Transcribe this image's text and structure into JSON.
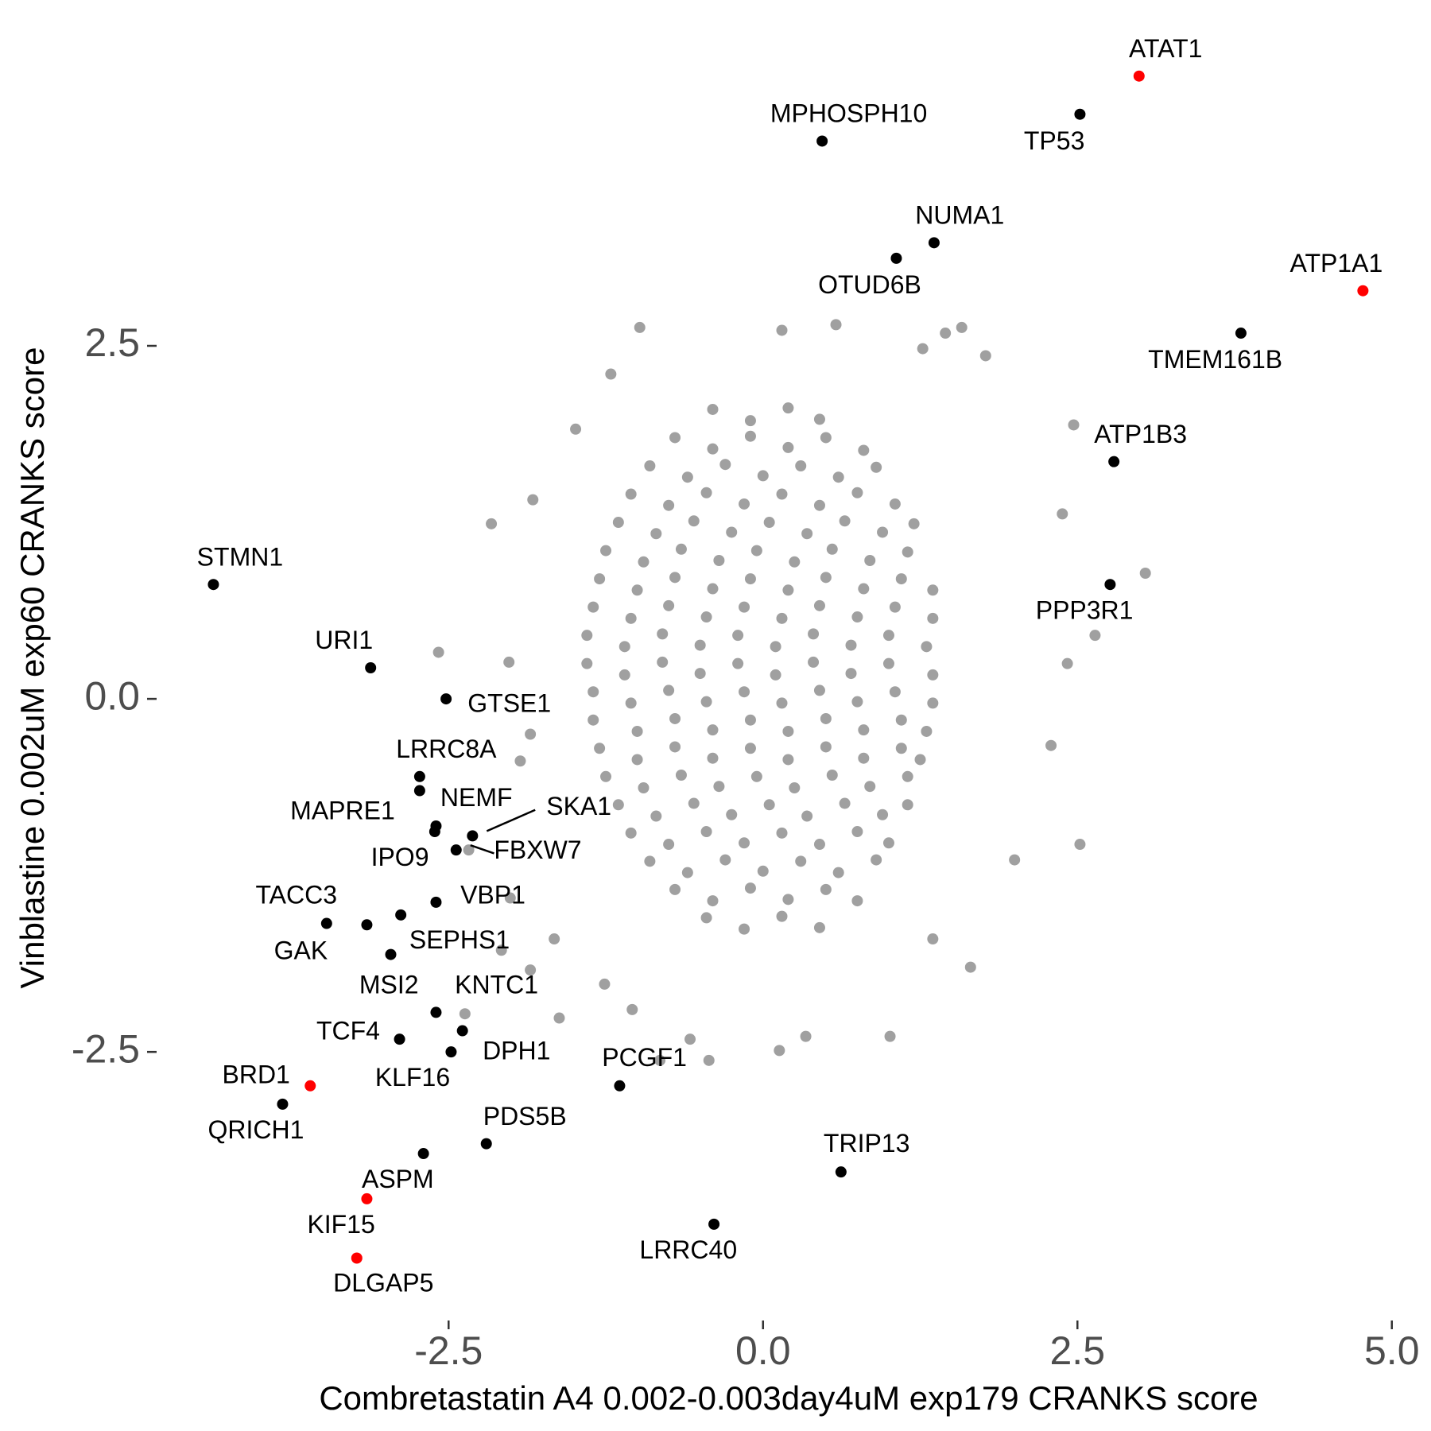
{
  "chart_data": {
    "type": "scatter",
    "x_label": "Combretastatin A4 0.002-0.003day4uM exp179 CRANKS score",
    "y_label": "Vinblastine 0.002uM exp60 CRANKS score",
    "xlim": [
      -4.79,
      5.09
    ],
    "ylim": [
      -4.34,
      4.69
    ],
    "xticks": [
      -2.5,
      {
        "value": 0,
        "label": "0.0"
      },
      2.5,
      {
        "value": 5,
        "label": "5.0"
      }
    ],
    "yticks": [
      -2.5,
      {
        "value": 0,
        "label": "0.0"
      },
      2.5
    ],
    "background": {
      "color": "#a0a0a0",
      "x": [
        -0.4,
        -0.1,
        0.2,
        0.45,
        -0.7,
        -0.4,
        -0.1,
        0.2,
        0.5,
        0.8,
        -0.9,
        -0.6,
        -0.3,
        0.0,
        0.3,
        0.6,
        0.9,
        -1.05,
        -0.75,
        -0.45,
        -0.15,
        0.15,
        0.45,
        0.75,
        1.05,
        -1.15,
        -0.85,
        -0.55,
        -0.25,
        0.05,
        0.35,
        0.65,
        0.95,
        1.2,
        -1.25,
        -0.95,
        -0.65,
        -0.35,
        -0.05,
        0.25,
        0.55,
        0.85,
        1.15,
        -1.3,
        -1.0,
        -0.7,
        -0.4,
        -0.1,
        0.2,
        0.5,
        0.8,
        1.1,
        1.35,
        -1.35,
        -1.05,
        -0.75,
        -0.45,
        -0.15,
        0.15,
        0.45,
        0.75,
        1.05,
        1.35,
        -1.4,
        -1.1,
        -0.8,
        -0.5,
        -0.2,
        0.1,
        0.4,
        0.7,
        1.0,
        1.3,
        -1.4,
        -1.1,
        -0.8,
        -0.5,
        -0.2,
        0.1,
        0.4,
        0.7,
        1.0,
        1.35,
        -1.35,
        -1.05,
        -0.75,
        -0.45,
        -0.15,
        0.15,
        0.45,
        0.75,
        1.05,
        1.35,
        -1.35,
        -1.0,
        -0.7,
        -0.4,
        -0.1,
        0.2,
        0.5,
        0.8,
        1.1,
        1.3,
        -1.3,
        -1.0,
        -0.7,
        -0.4,
        -0.1,
        0.2,
        0.5,
        0.8,
        1.1,
        1.25,
        -1.25,
        -0.95,
        -0.65,
        -0.35,
        -0.05,
        0.25,
        0.55,
        0.85,
        1.15,
        -1.15,
        -0.85,
        -0.55,
        -0.25,
        0.05,
        0.35,
        0.65,
        0.95,
        1.15,
        -1.05,
        -0.75,
        -0.45,
        -0.15,
        0.15,
        0.45,
        0.75,
        1.0,
        -0.9,
        -0.6,
        -0.3,
        0.0,
        0.3,
        0.6,
        0.9,
        -0.7,
        -0.4,
        -0.1,
        0.2,
        0.5,
        0.75,
        -0.45,
        -0.15,
        0.15,
        0.45,
        -0.98,
        0.15,
        0.58,
        1.45,
        1.58,
        1.27,
        1.77,
        -1.21,
        2.47,
        2.38,
        -1.49,
        -1.83,
        -2.16,
        3.04,
        2.64,
        2.42,
        2.29,
        2.52,
        2.0,
        -2.58,
        -2.02,
        -1.85,
        -1.93,
        -2.34,
        -2.01,
        -1.66,
        -2.08,
        -1.85,
        -2.37,
        -1.62,
        -1.26,
        -1.04,
        -0.58,
        -0.43,
        0.13,
        0.34,
        1.01,
        1.65,
        1.35,
        -0.82
      ],
      "y": [
        2.05,
        1.97,
        2.06,
        1.98,
        1.85,
        1.77,
        1.86,
        1.78,
        1.85,
        1.76,
        1.65,
        1.57,
        1.66,
        1.58,
        1.65,
        1.57,
        1.64,
        1.45,
        1.37,
        1.46,
        1.38,
        1.45,
        1.37,
        1.46,
        1.38,
        1.25,
        1.17,
        1.26,
        1.18,
        1.25,
        1.17,
        1.26,
        1.18,
        1.24,
        1.05,
        0.97,
        1.06,
        0.98,
        1.05,
        0.97,
        1.06,
        0.98,
        1.04,
        0.85,
        0.77,
        0.86,
        0.78,
        0.85,
        0.77,
        0.86,
        0.78,
        0.85,
        0.77,
        0.65,
        0.57,
        0.66,
        0.58,
        0.65,
        0.57,
        0.66,
        0.58,
        0.65,
        0.57,
        0.45,
        0.37,
        0.46,
        0.38,
        0.45,
        0.37,
        0.46,
        0.38,
        0.45,
        0.37,
        0.25,
        0.17,
        0.26,
        0.18,
        0.25,
        0.17,
        0.26,
        0.18,
        0.25,
        0.17,
        0.05,
        -0.03,
        0.06,
        -0.02,
        0.05,
        -0.03,
        0.06,
        -0.02,
        0.05,
        -0.03,
        -0.15,
        -0.23,
        -0.14,
        -0.22,
        -0.15,
        -0.23,
        -0.14,
        -0.22,
        -0.15,
        -0.23,
        -0.35,
        -0.43,
        -0.34,
        -0.42,
        -0.35,
        -0.43,
        -0.34,
        -0.42,
        -0.35,
        -0.43,
        -0.55,
        -0.63,
        -0.54,
        -0.62,
        -0.55,
        -0.63,
        -0.54,
        -0.62,
        -0.55,
        -0.75,
        -0.83,
        -0.74,
        -0.82,
        -0.75,
        -0.83,
        -0.74,
        -0.82,
        -0.75,
        -0.95,
        -1.03,
        -0.94,
        -1.02,
        -0.95,
        -1.03,
        -0.94,
        -1.02,
        -1.15,
        -1.23,
        -1.14,
        -1.22,
        -1.15,
        -1.23,
        -1.14,
        -1.35,
        -1.43,
        -1.34,
        -1.42,
        -1.35,
        -1.43,
        -1.55,
        -1.63,
        -1.54,
        -1.62,
        2.63,
        2.61,
        2.65,
        2.59,
        2.63,
        2.48,
        2.43,
        2.3,
        1.94,
        1.31,
        1.91,
        1.41,
        1.24,
        0.89,
        0.45,
        0.25,
        -0.33,
        -1.03,
        -1.14,
        0.33,
        0.26,
        -0.25,
        -0.44,
        -1.07,
        -1.41,
        -1.7,
        -1.78,
        -1.92,
        -2.23,
        -2.26,
        -2.02,
        -2.2,
        -2.41,
        -2.56,
        -2.49,
        -2.39,
        -2.39,
        -1.9,
        -1.7,
        -2.56
      ]
    },
    "highlighted": {
      "labels": [
        "ATAT1",
        "MPHOSPH10",
        "TP53",
        "NUMA1",
        "OTUD6B",
        "ATP1A1",
        "TMEM161B",
        "ATP1B3",
        "PPP3R1",
        "STMN1",
        "URI1",
        "GTSE1",
        "LRRC8A",
        "MAPRE1",
        "NEMF",
        "SKA1",
        "FBXW7",
        "IPO9",
        "VBP1",
        "TACC3",
        "GAK",
        "SEPHS1",
        "MSI2",
        "KNTC1",
        "TCF4",
        "DPH1",
        "KLF16",
        "PCGF1",
        "BRD1",
        "QRICH1",
        "PDS5B",
        "ASPM",
        "KIF15",
        "DLGAP5",
        "TRIP13",
        "LRRC40"
      ],
      "x": [
        2.99,
        0.47,
        2.52,
        1.36,
        1.06,
        4.77,
        3.8,
        2.79,
        2.76,
        -4.37,
        -3.12,
        -2.52,
        -2.73,
        -2.73,
        -2.6,
        -2.31,
        -2.44,
        -2.61,
        -2.6,
        -3.47,
        -3.15,
        -2.88,
        -2.96,
        -2.6,
        -2.89,
        -2.39,
        -2.48,
        -1.14,
        -3.6,
        -3.82,
        -2.2,
        -2.7,
        -3.15,
        -3.23,
        0.62,
        -0.39
      ],
      "y": [
        4.41,
        3.95,
        4.14,
        3.23,
        3.12,
        2.89,
        2.59,
        1.68,
        0.81,
        0.81,
        0.22,
        0.0,
        -0.55,
        -0.65,
        -0.9,
        -0.97,
        -1.07,
        -0.94,
        -1.44,
        -1.59,
        -1.6,
        -1.53,
        -1.81,
        -2.22,
        -2.41,
        -2.35,
        -2.5,
        -2.74,
        -2.74,
        -2.87,
        -3.15,
        -3.22,
        -3.54,
        -3.96,
        -3.35,
        -3.72
      ],
      "colors": [
        "#ff0000",
        "#000000",
        "#000000",
        "#000000",
        "#000000",
        "#ff0000",
        "#000000",
        "#000000",
        "#000000",
        "#000000",
        "#000000",
        "#000000",
        "#000000",
        "#000000",
        "#000000",
        "#000000",
        "#000000",
        "#000000",
        "#000000",
        "#000000",
        "#000000",
        "#000000",
        "#000000",
        "#000000",
        "#000000",
        "#000000",
        "#000000",
        "#000000",
        "#ff0000",
        "#000000",
        "#000000",
        "#000000",
        "#ff0000",
        "#ff0000",
        "#000000",
        "#000000"
      ]
    }
  }
}
